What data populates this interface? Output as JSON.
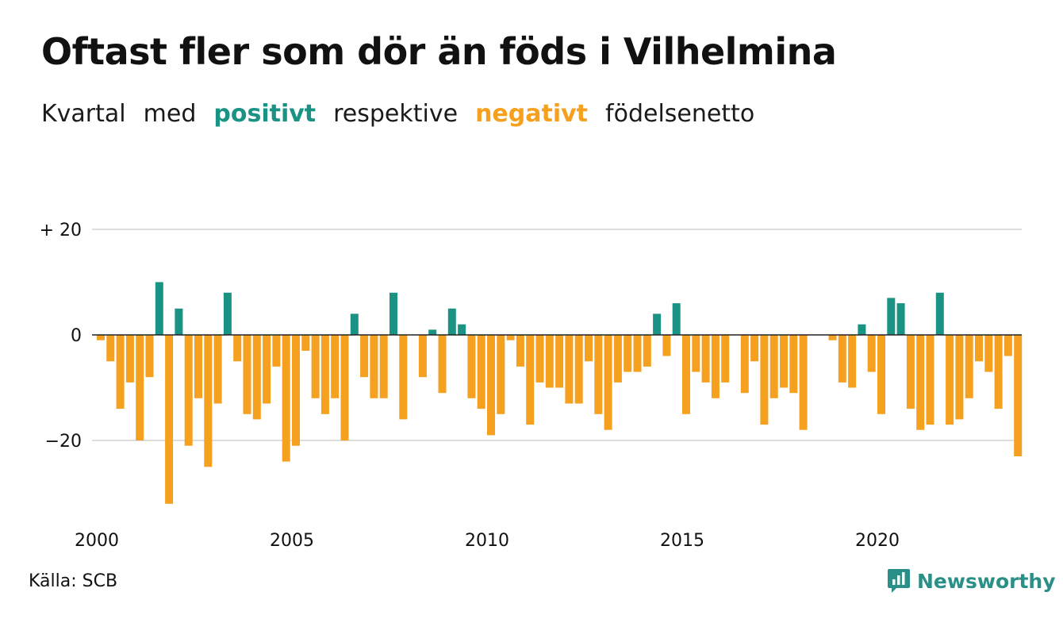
{
  "title": "Oftast fler som dör än föds i Vilhelmina",
  "subtitle": {
    "w1": "Kvartal",
    "w2": "med",
    "positive": "positivt",
    "w3": "respektive",
    "negative": "negativt",
    "w4": "födelsenetto"
  },
  "source": "Källa: SCB",
  "brand": "Newsworthy",
  "colors": {
    "positive": "#1a9385",
    "negative": "#f5a01e",
    "grid": "#dddddd",
    "brand": "#2a8f86"
  },
  "icons": {
    "logo": "bar-chart-bubble-icon"
  },
  "chart_data": {
    "type": "bar",
    "ylim": [
      -33,
      20
    ],
    "y_ticks": [
      {
        "value": 20,
        "label": "+ 20"
      },
      {
        "value": 0,
        "label": "0"
      },
      {
        "value": -20,
        "label": "−20"
      }
    ],
    "x_ticks": [
      {
        "year": 2000,
        "label": "2000"
      },
      {
        "year": 2005,
        "label": "2005"
      },
      {
        "year": 2010,
        "label": "2010"
      },
      {
        "year": 2015,
        "label": "2015"
      },
      {
        "year": 2020,
        "label": "2020"
      }
    ],
    "grid": true,
    "legend": "subtitle",
    "start_year": 2000,
    "values": [
      -1,
      -5,
      -14,
      -9,
      -20,
      -8,
      10,
      -32,
      5,
      -21,
      -12,
      -25,
      -13,
      8,
      -5,
      -15,
      -16,
      -13,
      -6,
      -24,
      -21,
      -3,
      -12,
      -15,
      -12,
      -20,
      4,
      -8,
      -12,
      -12,
      8,
      -16,
      0,
      -8,
      1,
      -11,
      5,
      2,
      -12,
      -14,
      -19,
      -15,
      -1,
      -6,
      -17,
      -9,
      -10,
      -10,
      -13,
      -13,
      -5,
      -15,
      -18,
      -9,
      -7,
      -7,
      -6,
      4,
      -4,
      6,
      -15,
      -7,
      -9,
      -12,
      -9,
      0,
      -11,
      -5,
      -17,
      -12,
      -10,
      -11,
      -18,
      0,
      0,
      -1,
      -9,
      -10,
      2,
      -7,
      -15,
      7,
      6,
      -14,
      -18,
      -17,
      8,
      -17,
      -16,
      -12,
      -5,
      -7,
      -14,
      -4,
      -23
    ]
  }
}
